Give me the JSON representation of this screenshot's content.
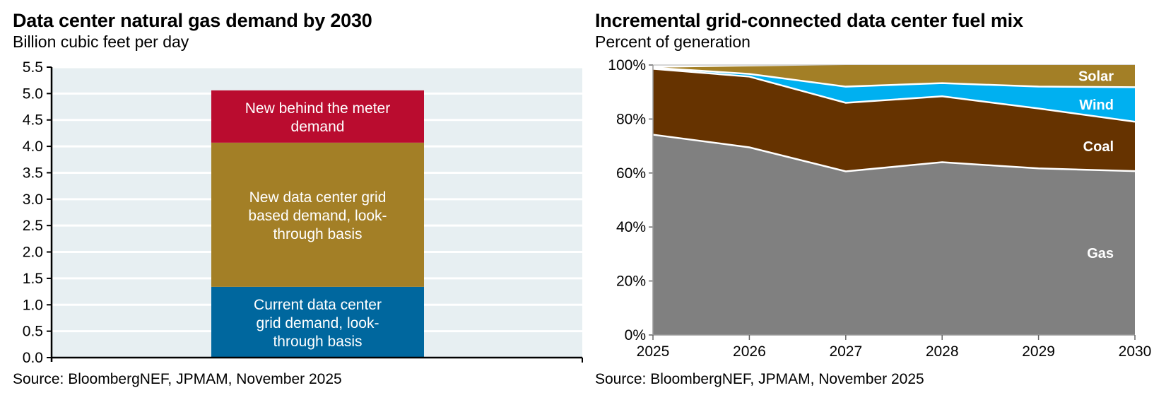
{
  "left": {
    "title": "Data center natural gas demand by 2030",
    "subtitle": "Billion cubic feet per day",
    "source": "Source: BloombergNEF, JPMAM, November 2025"
  },
  "right": {
    "title": "Incremental grid-connected data center fuel mix",
    "subtitle": "Percent of generation",
    "source": "Source: BloombergNEF, JPMAM, November 2025"
  },
  "chart_data": [
    {
      "type": "bar",
      "stacked": true,
      "title": "Data center natural gas demand by 2030",
      "subtitle": "Billion cubic feet per day",
      "xlabel": "",
      "ylabel": "Billion cubic feet per day",
      "ylim": [
        0,
        5.5
      ],
      "yticks": [
        "0.0",
        "0.5",
        "1.0",
        "1.5",
        "2.0",
        "2.5",
        "3.0",
        "3.5",
        "4.0",
        "4.5",
        "5.0",
        "5.5"
      ],
      "ytick_values": [
        0,
        0.5,
        1,
        1.5,
        2,
        2.5,
        3,
        3.5,
        4,
        4.5,
        5,
        5.5
      ],
      "grid": true,
      "plot_background": "#e7eff2",
      "categories": [
        "2030"
      ],
      "series": [
        {
          "name": "Current data center grid demand, look-through basis",
          "label_lines": [
            "Current data center",
            "grid demand, look-",
            "through basis"
          ],
          "values": [
            1.34
          ],
          "color": "#00679e"
        },
        {
          "name": "New data center grid based demand, look-through basis",
          "label_lines": [
            "New data center grid",
            "based demand, look-",
            "through basis"
          ],
          "values": [
            2.73
          ],
          "color": "#a37f26"
        },
        {
          "name": "New behind the meter demand",
          "label_lines": [
            "New behind the meter",
            "demand"
          ],
          "values": [
            0.99
          ],
          "color": "#ba0c2f"
        }
      ],
      "total": 5.06,
      "source": "Source: BloombergNEF, JPMAM, November 2025"
    },
    {
      "type": "area",
      "stacked": true,
      "title": "Incremental grid-connected data center fuel mix",
      "subtitle": "Percent of generation",
      "xlabel": "",
      "ylabel": "Percent of generation",
      "ylim": [
        0,
        100
      ],
      "yticks": [
        "0%",
        "20%",
        "40%",
        "60%",
        "80%",
        "100%"
      ],
      "ytick_values": [
        0,
        20,
        40,
        60,
        80,
        100
      ],
      "x": [
        "2025",
        "2026",
        "2027",
        "2028",
        "2029",
        "2030"
      ],
      "grid": false,
      "legend": "inline-right",
      "series": [
        {
          "name": "Gas",
          "values": [
            74.2,
            69.5,
            60.6,
            64.0,
            61.7,
            60.7
          ],
          "color": "#808080"
        },
        {
          "name": "Coal",
          "values": [
            24.4,
            26.2,
            25.4,
            24.4,
            22.2,
            18.3
          ],
          "color": "#663300"
        },
        {
          "name": "Wind",
          "values": [
            0.4,
            1.0,
            6.0,
            4.9,
            8.1,
            12.8
          ],
          "color": "#00b0f0"
        },
        {
          "name": "Solar",
          "values": [
            0.0,
            2.8,
            8.0,
            6.7,
            8.0,
            8.2
          ],
          "color": "#a37f26"
        }
      ],
      "source": "Source: BloombergNEF, JPMAM, November 2025"
    }
  ]
}
